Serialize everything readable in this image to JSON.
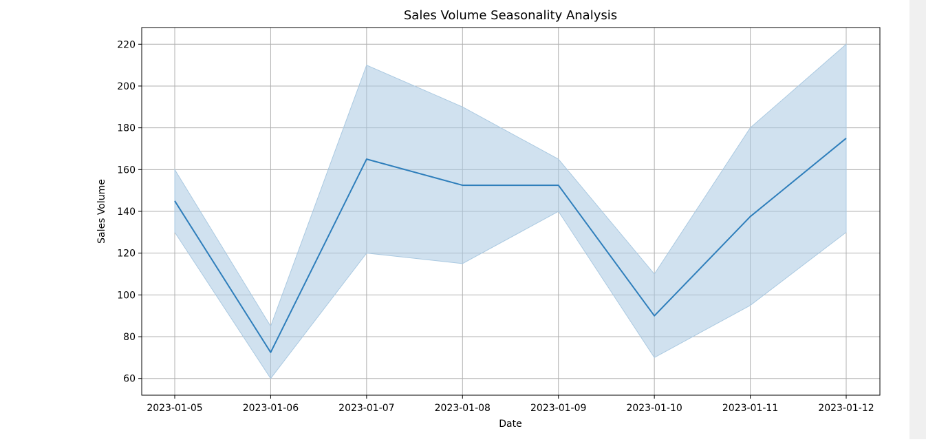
{
  "colors": {
    "line": "#2e7ebb",
    "band": "#aac9e1",
    "grid": "#b0b0b0",
    "axes": "#000000",
    "side_panel": "#f0f0f0"
  },
  "chart_data": {
    "type": "line",
    "title": "Sales Volume Seasonality Analysis",
    "xlabel": "Date",
    "ylabel": "Sales Volume",
    "x": [
      "2023-01-05",
      "2023-01-06",
      "2023-01-07",
      "2023-01-08",
      "2023-01-09",
      "2023-01-10",
      "2023-01-11",
      "2023-01-12"
    ],
    "series": [
      {
        "values": [
          145,
          72.5,
          165,
          152.5,
          152.5,
          90,
          137.5,
          175
        ],
        "band_lower": [
          130,
          60,
          120,
          115,
          140,
          70,
          95,
          130
        ],
        "band_upper": [
          160,
          85,
          210,
          190,
          165,
          110,
          180,
          220
        ]
      }
    ],
    "yticks": [
      60,
      80,
      100,
      120,
      140,
      160,
      180,
      200,
      220
    ],
    "ylim": [
      52,
      228
    ],
    "grid": true
  }
}
